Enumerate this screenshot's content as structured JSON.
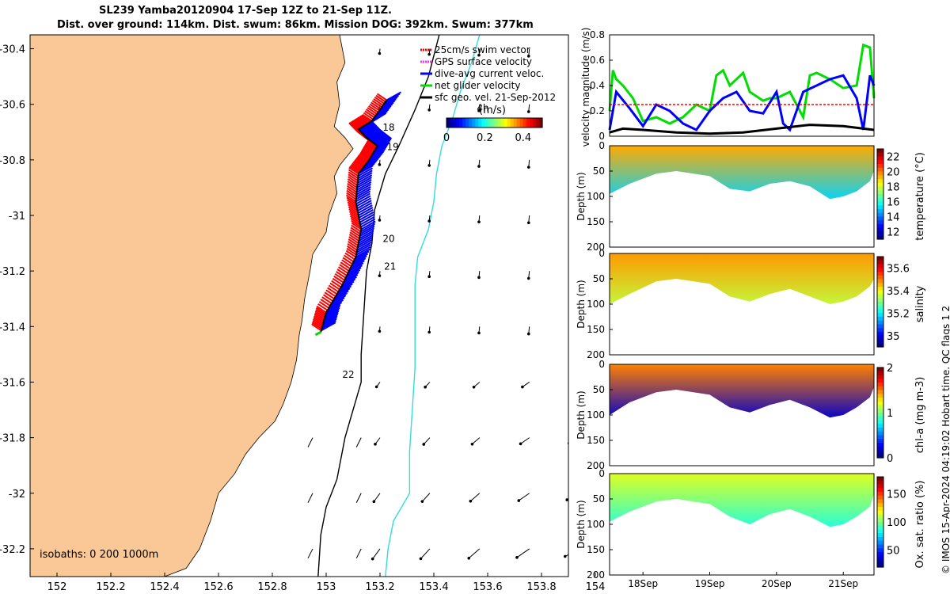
{
  "title_line1": "SL239 Yamba20120904 17-Sep 12Z to 21-Sep 11Z.",
  "title_line2": "Dist. over ground: 114km. Dist. swum: 86km. Mission DOG: 392km. Swum: 377km",
  "copyright": "© IMOS 15-Apr-2024 04:19:02 Hobart time. QC flags 1  2",
  "colors": {
    "land": "#f9c896",
    "track_red": "#ff0000",
    "track_blue": "#0000ff",
    "glider_green": "#00dd00",
    "isobath_cyan": "#33dddd",
    "gps_magenta": "#ff33ff"
  },
  "chart_data": [
    {
      "type": "map",
      "xlim": [
        151.9,
        153.9
      ],
      "ylim": [
        -32.3,
        -30.35
      ],
      "xticks": [
        152,
        152.2,
        152.4,
        152.6,
        152.8,
        153,
        153.2,
        153.4,
        153.6,
        153.8,
        154
      ],
      "xtick_labels": [
        "152",
        "152.2",
        "152.4",
        "152.6",
        "152.8",
        "153",
        "153.2",
        "153.4",
        "153.6",
        "153.8",
        "154"
      ],
      "yticks": [
        -30.4,
        -30.6,
        -30.8,
        -31,
        -31.2,
        -31.4,
        -31.6,
        -31.8,
        -32,
        -32.2
      ],
      "ytick_labels": [
        "-30.4",
        "-30.6",
        "-30.8",
        "-31",
        "-31.2",
        "-31.4",
        "-31.6",
        "-31.8",
        "-32",
        "-32.2"
      ],
      "legend": [
        "25cm/s swim vector",
        "GPS surface velocity",
        "dive-avg current veloc.",
        "net glider velocity",
        "sfc geo. vel. 21-Sep-2012"
      ],
      "colorbar": {
        "label": "(m/s)",
        "ticks": [
          "0",
          "0.2",
          "0.4"
        ],
        "range": [
          0,
          0.5
        ]
      },
      "isobaths_label": "isobaths: 0   200  1000m",
      "day_labels": [
        {
          "text": "18",
          "lon": 153.21,
          "lat": -30.695
        },
        {
          "text": "19",
          "lon": 153.225,
          "lat": -30.765
        },
        {
          "text": "20",
          "lon": 153.21,
          "lat": -31.095
        },
        {
          "text": "21",
          "lon": 153.215,
          "lat": -31.195
        },
        {
          "text": "22",
          "lon": 153.06,
          "lat": -31.585
        },
        {
          "text": "4h",
          "lon": 153.56,
          "lat": -30.625
        }
      ],
      "glider_track": [
        [
          153.225,
          -30.585
        ],
        [
          153.17,
          -30.66
        ],
        [
          153.12,
          -30.69
        ],
        [
          153.15,
          -30.72
        ],
        [
          153.19,
          -30.75
        ],
        [
          153.16,
          -30.8
        ],
        [
          153.12,
          -30.85
        ],
        [
          153.11,
          -30.95
        ],
        [
          153.13,
          -31.05
        ],
        [
          153.11,
          -31.15
        ],
        [
          153.06,
          -31.25
        ],
        [
          153.0,
          -31.35
        ],
        [
          152.98,
          -31.42
        ]
      ],
      "coastline": [
        [
          153.05,
          -30.35
        ],
        [
          153.07,
          -30.45
        ],
        [
          153.04,
          -30.52
        ],
        [
          153.05,
          -30.6
        ],
        [
          153.03,
          -30.68
        ],
        [
          153.07,
          -30.72
        ],
        [
          153.1,
          -30.76
        ],
        [
          153.05,
          -30.82
        ],
        [
          153.03,
          -30.86
        ],
        [
          153.04,
          -30.92
        ],
        [
          153.01,
          -31.0
        ],
        [
          153.0,
          -31.06
        ],
        [
          152.95,
          -31.14
        ],
        [
          152.94,
          -31.2
        ],
        [
          152.92,
          -31.3
        ],
        [
          152.91,
          -31.38
        ],
        [
          152.9,
          -31.43
        ],
        [
          152.89,
          -31.52
        ],
        [
          152.87,
          -31.6
        ],
        [
          152.84,
          -31.68
        ],
        [
          152.81,
          -31.74
        ],
        [
          152.75,
          -31.8
        ],
        [
          152.7,
          -31.86
        ],
        [
          152.66,
          -31.93
        ],
        [
          152.6,
          -32.0
        ],
        [
          152.57,
          -32.1
        ],
        [
          152.53,
          -32.2
        ],
        [
          152.48,
          -32.27
        ],
        [
          152.4,
          -32.3
        ]
      ],
      "isobath_200": [
        [
          153.42,
          -30.35
        ],
        [
          153.38,
          -30.5
        ],
        [
          153.33,
          -30.62
        ],
        [
          153.27,
          -30.75
        ],
        [
          153.22,
          -30.85
        ],
        [
          153.18,
          -30.98
        ],
        [
          153.17,
          -31.1
        ],
        [
          153.15,
          -31.2
        ],
        [
          153.14,
          -31.35
        ],
        [
          153.13,
          -31.5
        ],
        [
          153.13,
          -31.6
        ],
        [
          153.1,
          -31.7
        ],
        [
          153.07,
          -31.8
        ],
        [
          153.04,
          -31.95
        ],
        [
          153.0,
          -32.05
        ],
        [
          152.98,
          -32.15
        ],
        [
          152.97,
          -32.3
        ]
      ],
      "isobath_1000": [
        [
          153.57,
          -30.35
        ],
        [
          153.54,
          -30.45
        ],
        [
          153.5,
          -30.55
        ],
        [
          153.47,
          -30.65
        ],
        [
          153.43,
          -30.75
        ],
        [
          153.41,
          -30.85
        ],
        [
          153.4,
          -30.95
        ],
        [
          153.38,
          -31.05
        ],
        [
          153.34,
          -31.15
        ],
        [
          153.33,
          -31.25
        ],
        [
          153.33,
          -31.4
        ],
        [
          153.33,
          -31.55
        ],
        [
          153.32,
          -31.7
        ],
        [
          153.31,
          -31.85
        ],
        [
          153.31,
          -32.0
        ],
        [
          153.25,
          -32.1
        ],
        [
          153.23,
          -32.2
        ],
        [
          153.22,
          -32.3
        ]
      ]
    },
    {
      "type": "line",
      "ylabel": "velocity magnitude (m/s)",
      "ylim": [
        0,
        0.8
      ],
      "yticks": [
        "0",
        "0.2",
        "0.4",
        "0.6",
        "0.8"
      ],
      "xlim_days": [
        17.5,
        21.46
      ],
      "series": [
        {
          "color": "#00dd00",
          "x": [
            17.5,
            17.55,
            17.6,
            17.7,
            17.85,
            18.0,
            18.2,
            18.4,
            18.6,
            18.8,
            19.0,
            19.1,
            19.2,
            19.3,
            19.5,
            19.6,
            19.8,
            19.9,
            20.0,
            20.2,
            20.4,
            20.5,
            20.6,
            20.8,
            21.0,
            21.2,
            21.3,
            21.4,
            21.46
          ],
          "values": [
            0.2,
            0.52,
            0.45,
            0.4,
            0.3,
            0.12,
            0.15,
            0.1,
            0.15,
            0.25,
            0.2,
            0.48,
            0.52,
            0.4,
            0.5,
            0.35,
            0.28,
            0.3,
            0.3,
            0.35,
            0.15,
            0.48,
            0.5,
            0.45,
            0.38,
            0.4,
            0.72,
            0.7,
            0.3
          ]
        },
        {
          "color": "#0000ff",
          "x": [
            17.5,
            17.6,
            17.8,
            18.0,
            18.2,
            18.4,
            18.6,
            18.8,
            19.0,
            19.2,
            19.4,
            19.6,
            19.8,
            20.0,
            20.1,
            20.2,
            20.4,
            20.6,
            20.8,
            21.0,
            21.2,
            21.3,
            21.4,
            21.46
          ],
          "values": [
            0.05,
            0.35,
            0.22,
            0.08,
            0.25,
            0.2,
            0.1,
            0.05,
            0.2,
            0.3,
            0.35,
            0.2,
            0.18,
            0.35,
            0.1,
            0.05,
            0.35,
            0.4,
            0.45,
            0.48,
            0.3,
            0.05,
            0.48,
            0.4
          ]
        },
        {
          "color": "#ff0000",
          "x": [
            17.5,
            21.46
          ],
          "values": [
            0.25,
            0.25
          ]
        },
        {
          "color": "#000000",
          "x": [
            17.5,
            17.7,
            18.0,
            18.5,
            19.0,
            19.5,
            20.0,
            20.5,
            21.0,
            21.46
          ],
          "values": [
            0.03,
            0.06,
            0.05,
            0.03,
            0.02,
            0.03,
            0.06,
            0.09,
            0.08,
            0.05
          ]
        }
      ]
    },
    {
      "type": "heatmap",
      "ylabel": "Depth (m)",
      "ylim": [
        0,
        200
      ],
      "yticks": [
        "0",
        "50",
        "100",
        "150",
        "200"
      ],
      "colorbar_label": "temperature (°C)",
      "colorbar_ticks": [
        "22",
        "20",
        "18",
        "16",
        "14",
        "12"
      ],
      "crange": [
        11,
        23
      ],
      "bottom_depth": {
        "x": [
          17.5,
          17.8,
          18.2,
          18.5,
          19.0,
          19.3,
          19.6,
          19.9,
          20.2,
          20.5,
          20.8,
          21.0,
          21.2,
          21.4,
          21.46
        ],
        "values": [
          95,
          75,
          55,
          50,
          60,
          85,
          90,
          75,
          70,
          80,
          105,
          100,
          90,
          70,
          50
        ]
      },
      "surface_value": 19.5,
      "bottom_value": 15.0
    },
    {
      "type": "heatmap",
      "ylabel": "Depth (m)",
      "ylim": [
        0,
        200
      ],
      "yticks": [
        "0",
        "50",
        "100",
        "150",
        "200"
      ],
      "colorbar_label": "salinity",
      "colorbar_ticks": [
        "35.6",
        "35.4",
        "35.2",
        "35"
      ],
      "crange": [
        34.9,
        35.7
      ],
      "bottom_depth": {
        "x": [
          17.5,
          17.8,
          18.2,
          18.5,
          19.0,
          19.3,
          19.6,
          19.9,
          20.2,
          20.5,
          20.8,
          21.0,
          21.2,
          21.4,
          21.46
        ],
        "values": [
          100,
          80,
          55,
          50,
          60,
          85,
          95,
          80,
          70,
          85,
          100,
          95,
          85,
          65,
          50
        ]
      },
      "surface_value": 35.48,
      "bottom_value": 35.35
    },
    {
      "type": "heatmap",
      "ylabel": "Depth (m)",
      "ylim": [
        0,
        200
      ],
      "yticks": [
        "0",
        "50",
        "100",
        "150",
        "200"
      ],
      "colorbar_label": "chl-a (mg m-3)",
      "colorbar_ticks": [
        "2",
        "1",
        "0"
      ],
      "crange": [
        0,
        2
      ],
      "bottom_depth": {
        "x": [
          17.5,
          17.8,
          18.2,
          18.5,
          19.0,
          19.3,
          19.6,
          19.9,
          20.2,
          20.5,
          20.8,
          21.0,
          21.2,
          21.4,
          21.46
        ],
        "values": [
          100,
          75,
          55,
          50,
          60,
          85,
          95,
          80,
          70,
          85,
          105,
          100,
          85,
          65,
          45
        ]
      },
      "surface_value": 1.5,
      "bottom_value": 0.15
    },
    {
      "type": "heatmap",
      "ylabel": "Depth (m)",
      "ylim": [
        0,
        200
      ],
      "yticks": [
        "0",
        "50",
        "100",
        "150",
        "200"
      ],
      "colorbar_label": "Ox. sat. ratio (%)",
      "colorbar_ticks": [
        "150",
        "100",
        "50"
      ],
      "crange": [
        20,
        180
      ],
      "bottom_depth": {
        "x": [
          17.5,
          17.8,
          18.2,
          18.5,
          19.0,
          19.3,
          19.6,
          19.9,
          20.2,
          20.5,
          20.8,
          21.0,
          21.2,
          21.4,
          21.46
        ],
        "values": [
          95,
          75,
          55,
          50,
          60,
          85,
          100,
          80,
          70,
          85,
          105,
          100,
          85,
          65,
          40
        ]
      },
      "surface_value": 115,
      "bottom_value": 85,
      "xticks": [
        18,
        19,
        20,
        21
      ],
      "xtick_labels": [
        "18Sep",
        "19Sep",
        "20Sep",
        "21Sep"
      ]
    }
  ]
}
